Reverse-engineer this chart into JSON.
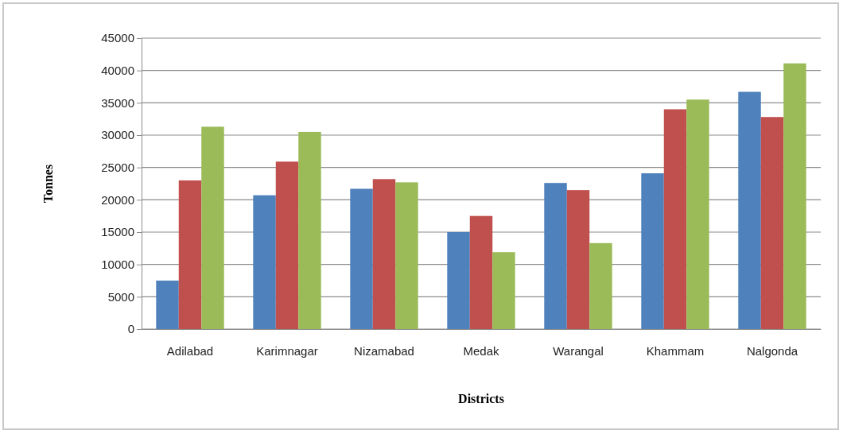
{
  "chart_data": {
    "type": "bar",
    "xlabel": "Districts",
    "ylabel": "Tonnes",
    "categories": [
      "Adilabad",
      "Karimnagar",
      "Nizamabad",
      "Medak",
      "Warangal",
      "Khammam",
      "Nalgonda"
    ],
    "series": [
      {
        "color": "#4f81bd",
        "values": [
          7500,
          20700,
          21700,
          15000,
          22600,
          24100,
          36700
        ]
      },
      {
        "color": "#c0504d",
        "values": [
          23000,
          25900,
          23200,
          17500,
          21500,
          34000,
          32800
        ]
      },
      {
        "color": "#9bbb59",
        "values": [
          31300,
          30500,
          22700,
          11900,
          13300,
          35500,
          41100
        ]
      }
    ],
    "ylim": [
      0,
      45000
    ],
    "yticks": [
      0,
      5000,
      10000,
      15000,
      20000,
      25000,
      30000,
      35000,
      40000,
      45000
    ],
    "grid": "y"
  }
}
